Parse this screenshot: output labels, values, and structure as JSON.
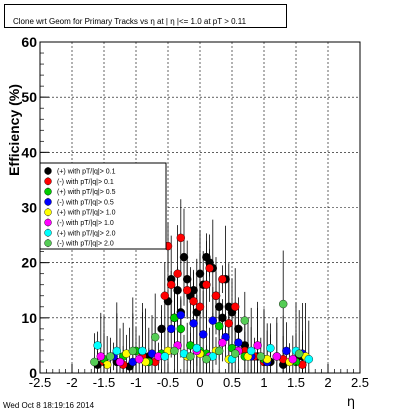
{
  "chart_data": {
    "type": "scatter",
    "title": "Clone wrt Geom for Primary Tracks vs  η at | η |<= 1.0 at pT > 0.11",
    "xlabel": "η",
    "ylabel": "Efficiency (%)",
    "xlim": [
      -2.5,
      2.5
    ],
    "ylim": [
      0,
      60
    ],
    "x_ticks": [
      "-2.5",
      "-2",
      "-1.5",
      "-1",
      "-0.5",
      "0",
      "0.5",
      "1",
      "1.5",
      "2",
      "2.5"
    ],
    "y_ticks": [
      "0",
      "10",
      "20",
      "30",
      "40",
      "50",
      "60"
    ],
    "grid": true,
    "legend_position": "left-middle",
    "series": [
      {
        "name": "(+) with pT/|q|> 0.1",
        "color": "#000000",
        "points": [
          [
            -1.6,
            1.5
          ],
          [
            -1.3,
            2.0
          ],
          [
            -1.1,
            1.2
          ],
          [
            -0.8,
            3.0
          ],
          [
            -0.6,
            8.0
          ],
          [
            -0.5,
            13.0
          ],
          [
            -0.45,
            17.0
          ],
          [
            -0.4,
            10.0
          ],
          [
            -0.35,
            15.0
          ],
          [
            -0.3,
            11.0
          ],
          [
            -0.25,
            21.0
          ],
          [
            -0.2,
            17.0
          ],
          [
            -0.15,
            14.0
          ],
          [
            -0.1,
            15.0
          ],
          [
            -0.05,
            11.0
          ],
          [
            0.0,
            18.0
          ],
          [
            0.05,
            16.0
          ],
          [
            0.1,
            21.0
          ],
          [
            0.15,
            20.0
          ],
          [
            0.2,
            19.0
          ],
          [
            0.25,
            14.0
          ],
          [
            0.3,
            12.0
          ],
          [
            0.35,
            10.0
          ],
          [
            0.4,
            17.0
          ],
          [
            0.45,
            12.0
          ],
          [
            0.5,
            11.0
          ],
          [
            0.6,
            8.0
          ],
          [
            0.7,
            5.0
          ],
          [
            0.9,
            3.0
          ],
          [
            1.1,
            2.0
          ],
          [
            1.3,
            1.5
          ],
          [
            1.5,
            2.5
          ],
          [
            1.6,
            3.0
          ]
        ]
      },
      {
        "name": "(-) with pT/|q|> 0.1",
        "color": "#ff0000",
        "points": [
          [
            -1.5,
            2.0
          ],
          [
            -1.2,
            1.5
          ],
          [
            -0.9,
            3.0
          ],
          [
            -0.7,
            2.0
          ],
          [
            -0.55,
            14.0
          ],
          [
            -0.5,
            23.0
          ],
          [
            -0.45,
            16.0
          ],
          [
            -0.35,
            18.0
          ],
          [
            -0.3,
            24.5
          ],
          [
            -0.2,
            15.0
          ],
          [
            -0.1,
            13.0
          ],
          [
            0.0,
            12.0
          ],
          [
            0.1,
            16.0
          ],
          [
            0.15,
            19.0
          ],
          [
            0.25,
            14.0
          ],
          [
            0.35,
            17.0
          ],
          [
            0.45,
            9.0
          ],
          [
            0.55,
            12.0
          ],
          [
            0.7,
            4.0
          ],
          [
            0.85,
            3.0
          ],
          [
            1.0,
            2.0
          ],
          [
            1.3,
            2.5
          ],
          [
            1.6,
            1.5
          ]
        ]
      },
      {
        "name": "(+) with pT/|q|> 0.5",
        "color": "#00cc00",
        "points": [
          [
            -1.5,
            2.5
          ],
          [
            -1.2,
            3.0
          ],
          [
            -1.0,
            4.0
          ],
          [
            -0.8,
            2.0
          ],
          [
            -0.6,
            3.5
          ],
          [
            -0.4,
            10.0
          ],
          [
            -0.3,
            8.0
          ],
          [
            -0.15,
            5.0
          ],
          [
            0.0,
            4.0
          ],
          [
            0.1,
            3.5
          ],
          [
            0.3,
            8.5
          ],
          [
            0.5,
            4.5
          ],
          [
            0.7,
            3.0
          ],
          [
            1.0,
            2.5
          ],
          [
            1.2,
            3.0
          ],
          [
            1.5,
            2.0
          ]
        ]
      },
      {
        "name": "(-) with pT/|q|> 0.5",
        "color": "#0000ff",
        "points": [
          [
            -1.35,
            3.0
          ],
          [
            -1.05,
            2.0
          ],
          [
            -0.75,
            3.5
          ],
          [
            -0.45,
            8.0
          ],
          [
            -0.3,
            10.5
          ],
          [
            -0.1,
            9.0
          ],
          [
            0.05,
            7.0
          ],
          [
            0.2,
            9.5
          ],
          [
            0.4,
            6.5
          ],
          [
            0.6,
            5.5
          ],
          [
            0.8,
            3.0
          ],
          [
            1.05,
            2.0
          ],
          [
            1.35,
            4.0
          ],
          [
            1.6,
            3.5
          ]
        ]
      },
      {
        "name": "(+) with pT/|q|> 1.0",
        "color": "#ffff00",
        "points": [
          [
            -1.45,
            1.5
          ],
          [
            -1.15,
            3.5
          ],
          [
            -0.85,
            2.0
          ],
          [
            -0.5,
            4.0
          ],
          [
            -0.2,
            3.0
          ],
          [
            0.0,
            3.5
          ],
          [
            0.25,
            4.0
          ],
          [
            0.45,
            2.5
          ],
          [
            0.75,
            3.0
          ],
          [
            1.05,
            2.5
          ],
          [
            1.4,
            2.0
          ],
          [
            1.65,
            3.0
          ]
        ]
      },
      {
        "name": "(-) with pT/|q|> 1.0",
        "color": "#ff00ff",
        "points": [
          [
            -1.55,
            3.0
          ],
          [
            -1.25,
            2.0
          ],
          [
            -0.95,
            2.5
          ],
          [
            -0.65,
            3.0
          ],
          [
            -0.35,
            5.0
          ],
          [
            -0.05,
            4.0
          ],
          [
            0.15,
            3.0
          ],
          [
            0.35,
            5.5
          ],
          [
            0.6,
            4.0
          ],
          [
            0.9,
            5.0
          ],
          [
            1.2,
            3.0
          ],
          [
            1.45,
            2.5
          ]
        ]
      },
      {
        "name": "(+) with pT/|q|> 2.0",
        "color": "#00ffff",
        "points": [
          [
            -1.6,
            5.0
          ],
          [
            -1.3,
            4.0
          ],
          [
            -0.9,
            4.0
          ],
          [
            -0.55,
            3.0
          ],
          [
            -0.25,
            3.5
          ],
          [
            -0.05,
            4.5
          ],
          [
            0.2,
            3.0
          ],
          [
            0.5,
            2.5
          ],
          [
            0.8,
            4.0
          ],
          [
            1.1,
            4.5
          ],
          [
            1.5,
            4.0
          ],
          [
            1.7,
            2.5
          ]
        ]
      },
      {
        "name": "(-) with pT/|q|> 2.0",
        "color": "#55cc55",
        "points": [
          [
            -1.65,
            2.0
          ],
          [
            -1.4,
            3.0
          ],
          [
            -1.05,
            4.0
          ],
          [
            -0.7,
            6.5
          ],
          [
            -0.4,
            4.0
          ],
          [
            -0.15,
            3.0
          ],
          [
            0.1,
            2.5
          ],
          [
            0.3,
            4.0
          ],
          [
            0.55,
            3.5
          ],
          [
            0.7,
            9.5
          ],
          [
            0.95,
            3.0
          ],
          [
            1.3,
            12.5
          ],
          [
            1.55,
            3.5
          ]
        ]
      }
    ]
  },
  "footer": {
    "timestamp": "Wed Oct  8 18:19:16 2014"
  }
}
